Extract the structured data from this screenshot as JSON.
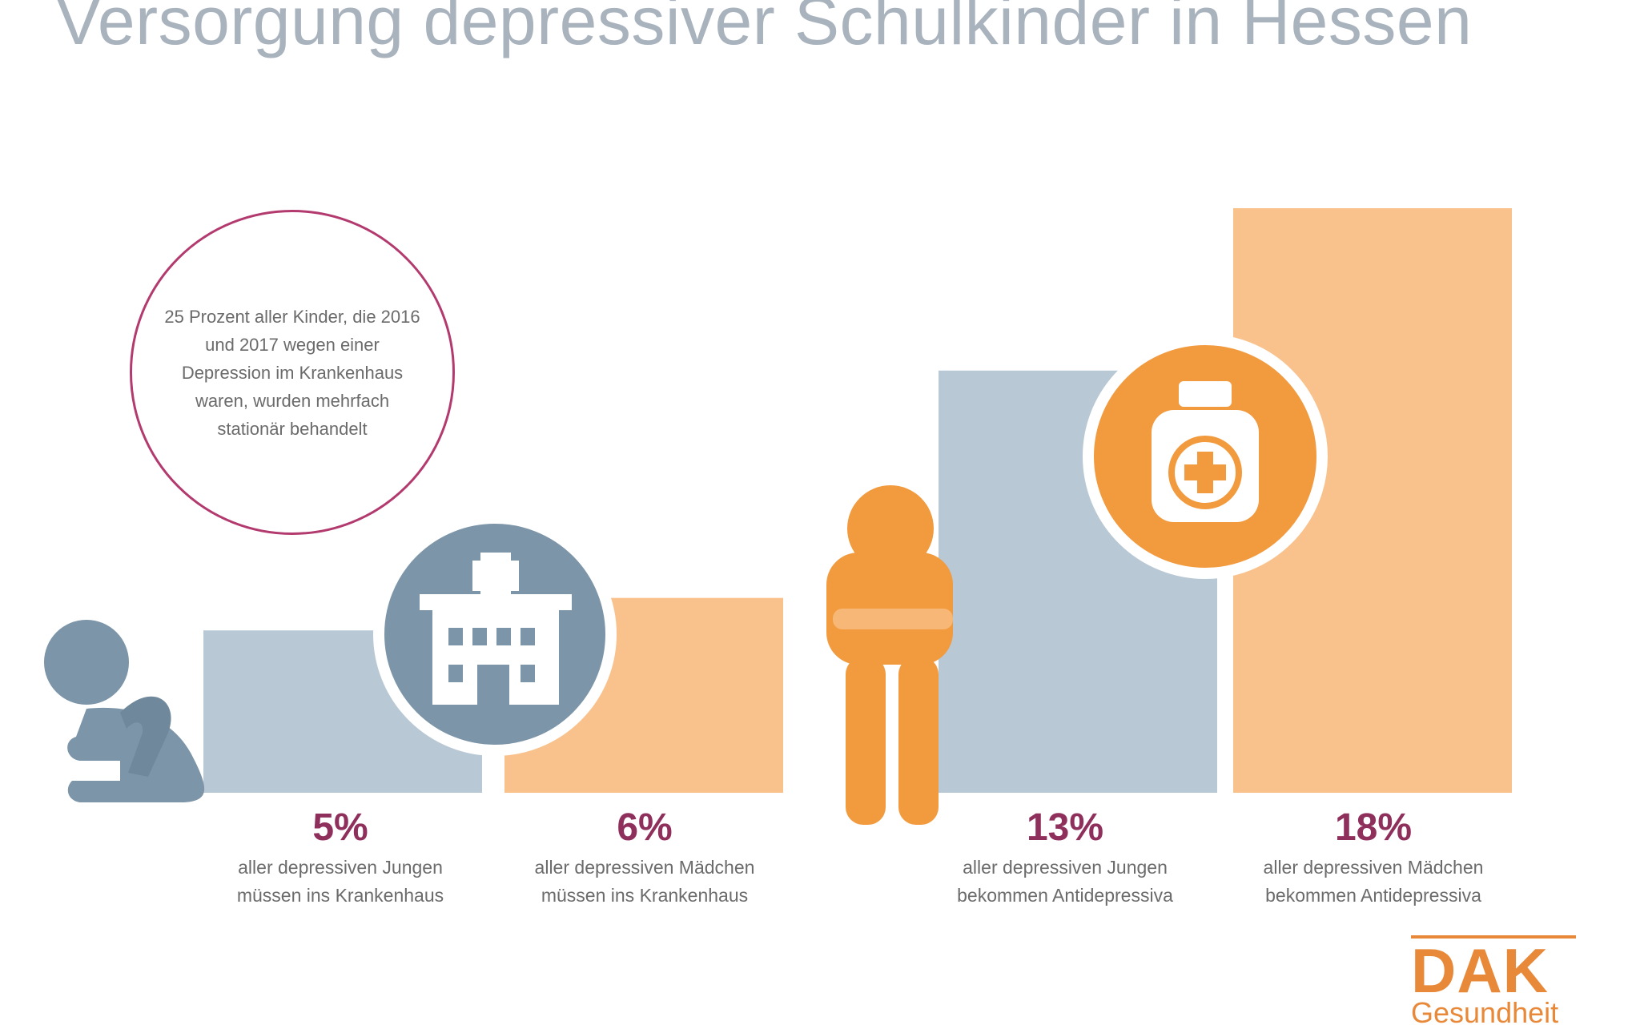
{
  "page": {
    "title": "Versorgung depressiver Schulkinder in Hessen"
  },
  "note": {
    "text": "25 Prozent aller Kinder, die 2016 und 2017 wegen einer Depression im Krankenhaus waren, wurden mehrfach stationär behandelt"
  },
  "icons": {
    "left_child": "sitting-child-icon",
    "hospital": "hospital-icon",
    "standing_child": "standing-child-icon",
    "medicine": "medicine-bottle-icon"
  },
  "chart_data": {
    "type": "bar",
    "title": "Versorgung depressiver Schulkinder in Hessen",
    "xlabel": "",
    "ylabel": "",
    "ylim": [
      0,
      18
    ],
    "categories": [
      "aller depressiven Jungen müssen ins Krankenhaus",
      "aller depressiven Mädchen müssen ins Krankenhaus",
      "aller depressiven Jungen bekommen Antidepressiva",
      "aller depressiven Mädchen bekommen Antidepressiva"
    ],
    "values": [
      5,
      6,
      13,
      18
    ],
    "value_labels": [
      "5%",
      "6%",
      "13%",
      "18%"
    ],
    "descriptions": [
      [
        "aller depressiven Jungen",
        "müssen ins Krankenhaus"
      ],
      [
        "aller depressiven Mädchen",
        "müssen ins Krankenhaus"
      ],
      [
        "aller depressiven Jungen",
        "bekommen Antidepressiva"
      ],
      [
        "aller depressiven Mädchen",
        "bekommen Antidepressiva"
      ]
    ],
    "colors": [
      "#b8c8d4",
      "#f9c28c",
      "#b8c8d4",
      "#f9c28c"
    ],
    "grid": false,
    "legend": "none"
  },
  "colors": {
    "blue_gray": "#b8c8d4",
    "peach": "#f9c28c",
    "icon_blue": "#7d95a8",
    "icon_orange": "#f29a3e",
    "accent_purple": "#8f2f5c",
    "title_gray": "#a9b3bd"
  },
  "logo": {
    "word": "DAK",
    "sub": "Gesundheit"
  }
}
